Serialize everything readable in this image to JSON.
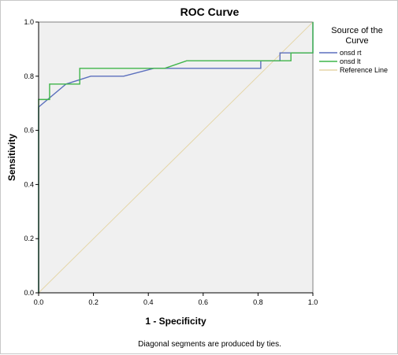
{
  "chart_data": {
    "type": "line",
    "title": "ROC Curve",
    "xlabel": "1 - Specificity",
    "ylabel": "Sensitivity",
    "xlim": [
      0,
      1
    ],
    "ylim": [
      0,
      1
    ],
    "xticks": [
      "0.0",
      "0.2",
      "0.4",
      "0.6",
      "0.8",
      "1.0"
    ],
    "yticks": [
      "0.0",
      "0.2",
      "0.4",
      "0.6",
      "0.8",
      "1.0"
    ],
    "grid": false,
    "background": "#f0f0f0",
    "legend": {
      "title_lines": [
        "Source of the",
        "Curve"
      ],
      "placement": "right"
    },
    "series": [
      {
        "name": "onsd rt",
        "color": "#5b6fbd",
        "x": [
          0,
          0,
          0.1,
          0.19,
          0.31,
          0.42,
          0.81,
          0.81,
          0.88,
          0.88,
          1,
          1
        ],
        "y": [
          0,
          0.686,
          0.771,
          0.8,
          0.8,
          0.829,
          0.829,
          0.857,
          0.857,
          0.886,
          0.886,
          1
        ]
      },
      {
        "name": "onsd lt",
        "color": "#3fb54a",
        "x": [
          0,
          0,
          0.04,
          0.04,
          0.15,
          0.15,
          0.46,
          0.54,
          0.85,
          0.85,
          0.92,
          0.92,
          1,
          1
        ],
        "y": [
          0,
          0.714,
          0.714,
          0.771,
          0.771,
          0.829,
          0.829,
          0.857,
          0.857,
          0.857,
          0.857,
          0.886,
          0.886,
          1
        ]
      },
      {
        "name": "Reference Line",
        "color": "#e5d6a8",
        "x": [
          0,
          1
        ],
        "y": [
          0,
          1
        ]
      }
    ],
    "footnote": "Diagonal segments are produced by ties."
  }
}
